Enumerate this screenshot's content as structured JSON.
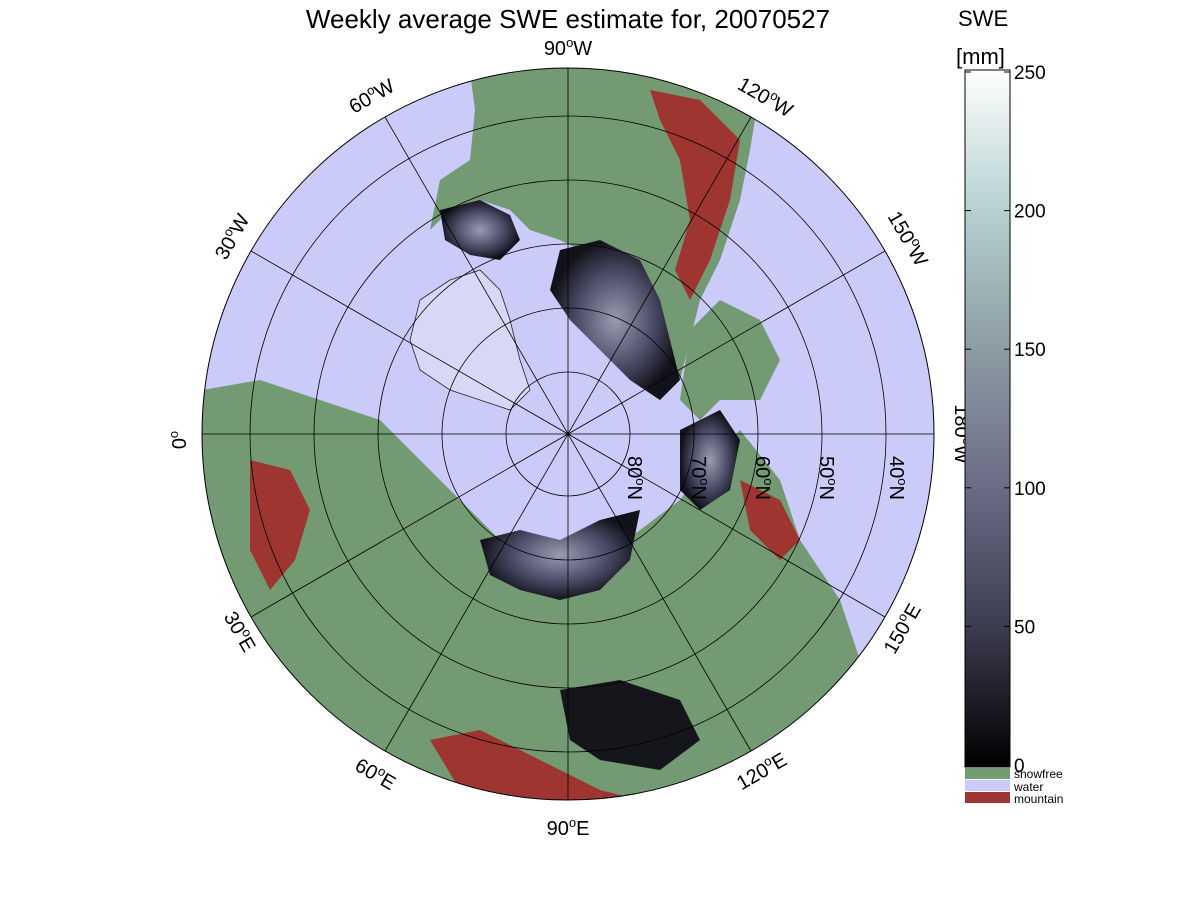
{
  "map": {
    "title": "Weekly average SWE estimate for, 20070527",
    "projection": "north-polar-stereographic",
    "longitude_labels": {
      "deg_90W": "90",
      "deg_60W": "60",
      "deg_120W": "120",
      "deg_30W": "30",
      "deg_150W": "150",
      "deg_0": "0",
      "deg_180W": "180",
      "deg_30E": "30",
      "deg_150E": "150",
      "deg_60E": "60",
      "deg_120E": "120",
      "deg_90E": "90"
    },
    "latitude_labels": [
      "80",
      "70",
      "60",
      "50",
      "40"
    ],
    "hemisphere_suffix": {
      "W": "W",
      "E": "E",
      "N": "N",
      "deg": "o"
    },
    "colors": {
      "ocean": "#cbcbfa",
      "snowfree": "#739a72",
      "mountain": "#9e3531",
      "snow_low": "#0a0a0f",
      "snow_mid": "#4a4a66",
      "snow_high": "#dfeeee",
      "grid": "#000000"
    }
  },
  "colorbar": {
    "title": "SWE",
    "unit": "[mm]",
    "ticks": [
      "250",
      "200",
      "150",
      "100",
      "50",
      "0"
    ],
    "tick_values": [
      250,
      200,
      150,
      100,
      50,
      0
    ],
    "range": [
      0,
      250
    ],
    "gradient": [
      "#000000",
      "#3c3c50",
      "#6b6b86",
      "#8c9ca3",
      "#b6d1d1",
      "#ffffff"
    ],
    "categories": [
      {
        "label": "snowfree",
        "color": "#739a72"
      },
      {
        "label": "water",
        "color": "#cbcbfa"
      },
      {
        "label": "mountain",
        "color": "#9e3531"
      }
    ]
  }
}
